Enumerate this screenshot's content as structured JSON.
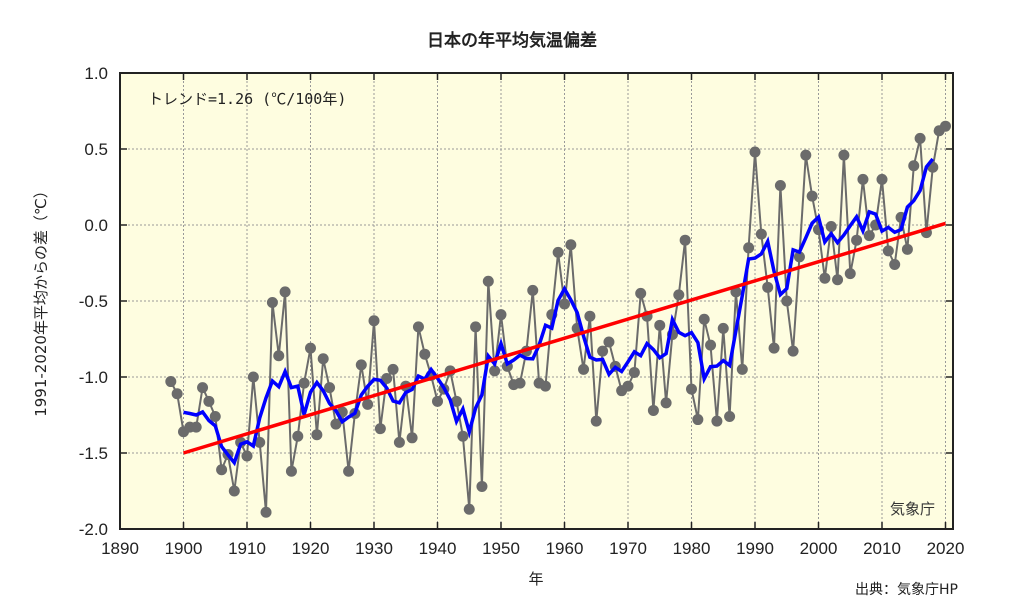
{
  "chart_data": {
    "type": "line",
    "title": "日本の年平均気温偏差",
    "xlabel": "年",
    "ylabel": "1991-2020年平均からの差（℃）",
    "xlim": [
      1890,
      2021
    ],
    "ylim": [
      -2.0,
      1.0
    ],
    "x_ticks": [
      "1890",
      "1900",
      "1910",
      "1920",
      "1930",
      "1940",
      "1950",
      "1960",
      "1970",
      "1980",
      "1990",
      "2000",
      "2010",
      "2020"
    ],
    "y_ticks": [
      "1.0",
      "0.5",
      "0.0",
      "-0.5",
      "-1.0",
      "-1.5",
      "-2.0"
    ],
    "grid": true,
    "annotation": "トレンド=1.26 (℃/100年)",
    "agency_label": "気象庁",
    "source": "出典：気象庁HP",
    "colors": {
      "background": "#fefde0",
      "annual": "#6b6b6b",
      "running_mean": "#0000ff",
      "trend": "#ff0000",
      "grid": "#999999"
    },
    "series": [
      {
        "name": "annual anomaly",
        "start_year": 1898,
        "values": [
          -1.03,
          -1.11,
          -1.36,
          -1.33,
          -1.33,
          -1.07,
          -1.16,
          -1.26,
          -1.61,
          -1.51,
          -1.75,
          -1.43,
          -1.52,
          -1.0,
          -1.43,
          -1.89,
          -0.51,
          -0.86,
          -0.44,
          -1.62,
          -1.39,
          -1.04,
          -0.81,
          -1.38,
          -0.88,
          -1.07,
          -1.31,
          -1.23,
          -1.62,
          -1.24,
          -0.92,
          -1.18,
          -0.63,
          -1.34,
          -1.01,
          -0.95,
          -1.43,
          -1.06,
          -1.4,
          -0.67,
          -0.85,
          -0.99,
          -1.16,
          -1.08,
          -0.96,
          -1.16,
          -1.39,
          -1.87,
          -0.67,
          -1.72,
          -0.37,
          -0.96,
          -0.59,
          -0.93,
          -1.05,
          -1.04,
          -0.83,
          -0.43,
          -1.04,
          -1.06,
          -0.59,
          -0.18,
          -0.52,
          -0.13,
          -0.68,
          -0.95,
          -0.6,
          -1.29,
          -0.83,
          -0.77,
          -0.93,
          -1.09,
          -1.06,
          -0.97,
          -0.45,
          -0.6,
          -1.22,
          -0.66,
          -1.17,
          -0.72,
          -0.46,
          -0.1,
          -1.08,
          -1.28,
          -0.62,
          -0.79,
          -1.29,
          -0.68,
          -1.26,
          -0.44,
          -0.95,
          -0.15,
          0.48,
          -0.06,
          -0.41,
          -0.81,
          0.26,
          -0.5,
          -0.83,
          -0.21,
          0.46,
          0.19,
          -0.03,
          -0.35,
          -0.01,
          -0.36,
          0.46,
          -0.32,
          -0.1,
          0.3,
          -0.07,
          0.0,
          0.3,
          -0.17,
          -0.26,
          0.05,
          -0.16,
          0.39,
          0.57,
          -0.05,
          0.38,
          0.62,
          0.65
        ]
      },
      {
        "name": "5-year running mean",
        "window": 5
      },
      {
        "name": "long-term trend",
        "x": [
          1900,
          2020
        ],
        "values": [
          -1.5,
          0.01
        ]
      }
    ]
  }
}
